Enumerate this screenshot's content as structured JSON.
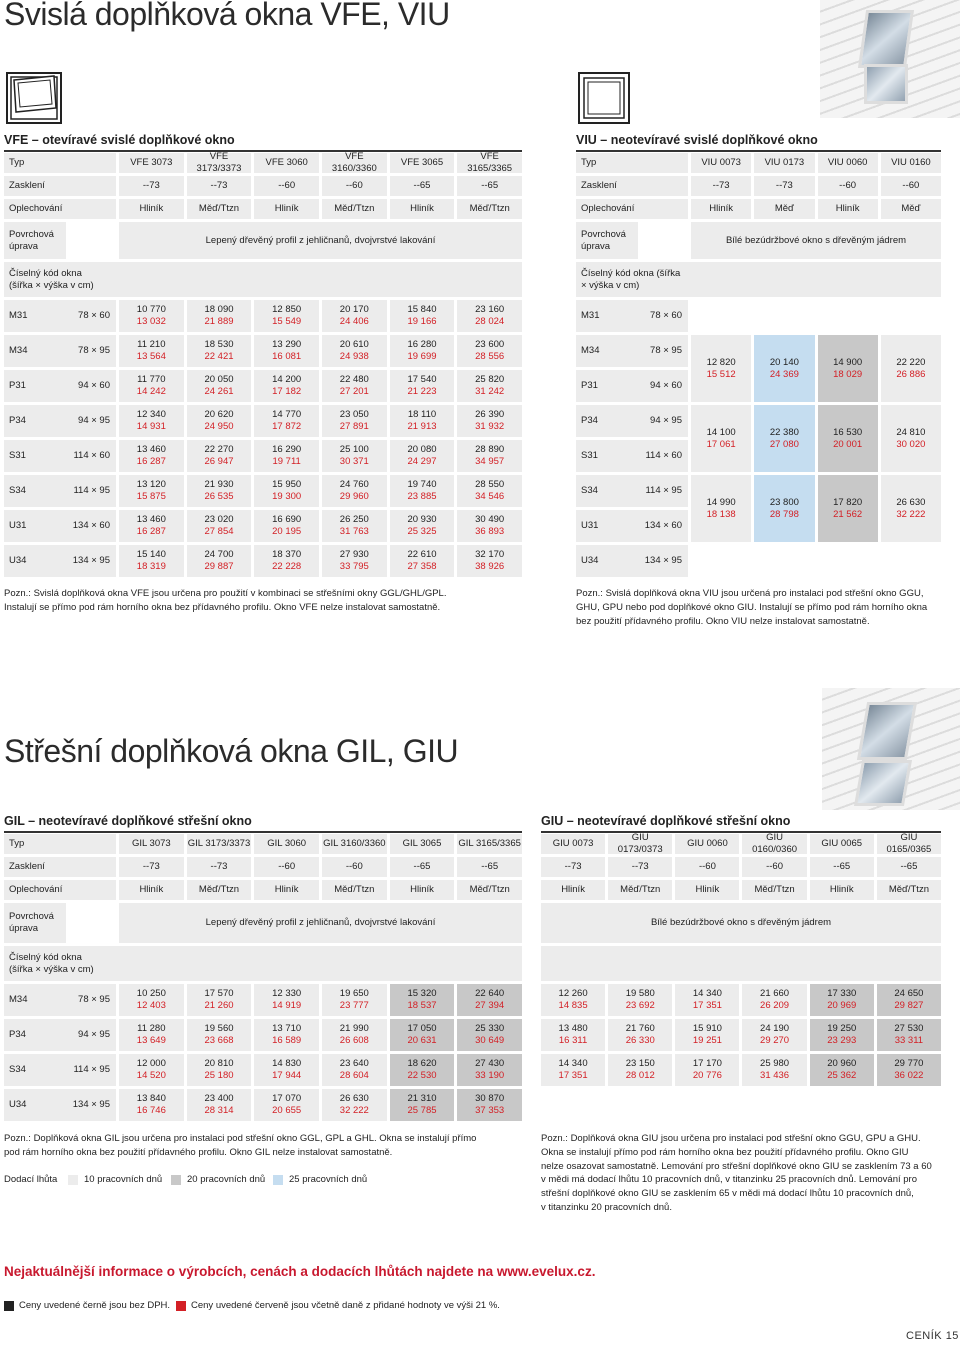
{
  "vfe_viu": {
    "title": "Svislá doplňková okna VFE, VIU",
    "vfe": {
      "heading": "VFE – otevíravé svislé doplňkové okno",
      "typ_label": "Typ",
      "types": [
        "VFE 3073",
        "VFE 3173/3373",
        "VFE 3060",
        "VFE 3160/3360",
        "VFE 3065",
        "VFE 3165/3365"
      ],
      "glazing_label": "Zasklení",
      "glazing": [
        "--73",
        "--73",
        "--60",
        "--60",
        "--65",
        "--65"
      ],
      "flashing_label": "Oplechování",
      "flashing": [
        "Hliník",
        "Měď/Ttzn",
        "Hliník",
        "Měď/Ttzn",
        "Hliník",
        "Měď/Ttzn"
      ],
      "finish_label": "Povrchová úprava",
      "finish": "Lepený dřevěný profil z jehličnanů, dvojvrstvé lakování",
      "code_label": "Číselný kód okna (šířka × výška v cm)",
      "rows": [
        {
          "code": "M31",
          "size": "78 × 60",
          "cells": [
            [
              "10 770",
              "13 032"
            ],
            [
              "18 090",
              "21 889"
            ],
            [
              "12 850",
              "15 549"
            ],
            [
              "20 170",
              "24 406"
            ],
            [
              "15 840",
              "19 166"
            ],
            [
              "23 160",
              "28 024"
            ]
          ]
        },
        {
          "code": "M34",
          "size": "78 × 95",
          "cells": [
            [
              "11 210",
              "13 564"
            ],
            [
              "18 530",
              "22 421"
            ],
            [
              "13 290",
              "16 081"
            ],
            [
              "20 610",
              "24 938"
            ],
            [
              "16 280",
              "19 699"
            ],
            [
              "23 600",
              "28 556"
            ]
          ]
        },
        {
          "code": "P31",
          "size": "94 × 60",
          "cells": [
            [
              "11 770",
              "14 242"
            ],
            [
              "20 050",
              "24 261"
            ],
            [
              "14 200",
              "17 182"
            ],
            [
              "22 480",
              "27 201"
            ],
            [
              "17 540",
              "21 223"
            ],
            [
              "25 820",
              "31 242"
            ]
          ]
        },
        {
          "code": "P34",
          "size": "94 × 95",
          "cells": [
            [
              "12 340",
              "14 931"
            ],
            [
              "20 620",
              "24 950"
            ],
            [
              "14 770",
              "17 872"
            ],
            [
              "23 050",
              "27 891"
            ],
            [
              "18 110",
              "21 913"
            ],
            [
              "26 390",
              "31 932"
            ]
          ]
        },
        {
          "code": "S31",
          "size": "114 × 60",
          "cells": [
            [
              "13 460",
              "16 287"
            ],
            [
              "22 270",
              "26 947"
            ],
            [
              "16 290",
              "19 711"
            ],
            [
              "25 100",
              "30 371"
            ],
            [
              "20 080",
              "24 297"
            ],
            [
              "28 890",
              "34 957"
            ]
          ]
        },
        {
          "code": "S34",
          "size": "114 × 95",
          "cells": [
            [
              "13 120",
              "15 875"
            ],
            [
              "21 930",
              "26 535"
            ],
            [
              "15 950",
              "19 300"
            ],
            [
              "24 760",
              "29 960"
            ],
            [
              "19 740",
              "23 885"
            ],
            [
              "28 550",
              "34 546"
            ]
          ]
        },
        {
          "code": "U31",
          "size": "134 × 60",
          "cells": [
            [
              "13 460",
              "16 287"
            ],
            [
              "23 020",
              "27 854"
            ],
            [
              "16 690",
              "20 195"
            ],
            [
              "26 250",
              "31 763"
            ],
            [
              "20 930",
              "25 325"
            ],
            [
              "30 490",
              "36 893"
            ]
          ]
        },
        {
          "code": "U34",
          "size": "134 × 95",
          "cells": [
            [
              "15 140",
              "18 319"
            ],
            [
              "24 700",
              "29 887"
            ],
            [
              "18 370",
              "22 228"
            ],
            [
              "27 930",
              "33 795"
            ],
            [
              "22 610",
              "27 358"
            ],
            [
              "32 170",
              "38 926"
            ]
          ]
        }
      ],
      "note_1": "Pozn.: Svislá doplňková okna VFE jsou určena pro použití v kombinaci se střešními okny GGL/GHL/GPL.",
      "note_2": "Instalují se přímo pod rám horního okna bez přídavného profilu. Okno VFE nelze instalovat samostatně."
    },
    "viu": {
      "heading": "VIU – neotevíravé svislé doplňkové okno",
      "typ_label": "Typ",
      "types": [
        "VIU 0073",
        "VIU 0173",
        "VIU 0060",
        "VIU 0160"
      ],
      "glazing_label": "Zasklení",
      "glazing": [
        "--73",
        "--73",
        "--60",
        "--60"
      ],
      "flashing_label": "Oplechování",
      "flashing": [
        "Hliník",
        "Měď",
        "Hliník",
        "Měď"
      ],
      "finish_label": "Povrchová úprava",
      "finish": "Bílé bezúdržbové okno s dřevěným jádrem",
      "code_label": "Číselný kód okna (šířka × výška v cm)",
      "rows": [
        {
          "code": "M31",
          "size": "78 × 60"
        },
        {
          "code": "M34",
          "size": "78 × 95"
        },
        {
          "code": "P31",
          "size": "94 × 60"
        },
        {
          "code": "P34",
          "size": "94 × 95"
        },
        {
          "code": "S31",
          "size": "114 × 60"
        },
        {
          "code": "S34",
          "size": "114 × 95"
        },
        {
          "code": "U31",
          "size": "134 × 60"
        },
        {
          "code": "U34",
          "size": "134 × 95"
        }
      ],
      "prices": [
        {
          "cells": [
            [
              "12 820",
              "15 512"
            ],
            [
              "20 140",
              "24 369"
            ],
            [
              "14 900",
              "18 029"
            ],
            [
              "22 220",
              "26 886"
            ]
          ]
        },
        {
          "cells": [
            [
              "14 100",
              "17 061"
            ],
            [
              "22 380",
              "27 080"
            ],
            [
              "16 530",
              "20 001"
            ],
            [
              "24 810",
              "30 020"
            ]
          ]
        },
        {
          "cells": [
            [
              "14 990",
              "18 138"
            ],
            [
              "23 800",
              "28 798"
            ],
            [
              "17 820",
              "21 562"
            ],
            [
              "26 630",
              "32 222"
            ]
          ]
        }
      ],
      "note_1": "Pozn.: Svislá doplňková okna VIU jsou určená pro instalaci pod střešní okno GGU,",
      "note_2": "GHU, GPU nebo pod doplňkové okno GIU. Instalují se přímo pod rám horního okna",
      "note_3": "bez použití přídavného profilu. Okno VIU nelze instalovat samostatně."
    }
  },
  "gil_giu": {
    "title": "Střešní doplňková okna GIL, GIU",
    "gil": {
      "heading": "GIL – neotevíravé doplňkové střešní okno",
      "typ_label": "Typ",
      "types": [
        "GIL 3073",
        "GIL 3173/3373",
        "GIL 3060",
        "GIL 3160/3360",
        "GIL 3065",
        "GIL 3165/3365"
      ],
      "glazing_label": "Zasklení",
      "glazing": [
        "--73",
        "--73",
        "--60",
        "--60",
        "--65",
        "--65"
      ],
      "flashing_label": "Oplechování",
      "flashing": [
        "Hliník",
        "Měď/Ttzn",
        "Hliník",
        "Měď/Ttzn",
        "Hliník",
        "Měď/Ttzn"
      ],
      "finish_label": "Povrchová úprava",
      "finish": "Lepený dřevěný profil z jehličnanů, dvojvrstvé lakování",
      "code_label": "Číselný kód okna (šířka × výška v cm)",
      "rows": [
        {
          "code": "M34",
          "size": "78 × 95",
          "cells": [
            [
              "10 250",
              "12 403"
            ],
            [
              "17 570",
              "21 260"
            ],
            [
              "12 330",
              "14 919"
            ],
            [
              "19 650",
              "23 777"
            ],
            [
              "15 320",
              "18 537"
            ],
            [
              "22 640",
              "27 394"
            ]
          ]
        },
        {
          "code": "P34",
          "size": "94 × 95",
          "cells": [
            [
              "11 280",
              "13 649"
            ],
            [
              "19 560",
              "23 668"
            ],
            [
              "13 710",
              "16 589"
            ],
            [
              "21 990",
              "26 608"
            ],
            [
              "17 050",
              "20 631"
            ],
            [
              "25 330",
              "30 649"
            ]
          ]
        },
        {
          "code": "S34",
          "size": "114 × 95",
          "cells": [
            [
              "12 000",
              "14 520"
            ],
            [
              "20 810",
              "25 180"
            ],
            [
              "14 830",
              "17 944"
            ],
            [
              "23 640",
              "28 604"
            ],
            [
              "18 620",
              "22 530"
            ],
            [
              "27 430",
              "33 190"
            ]
          ]
        },
        {
          "code": "U34",
          "size": "134 × 95",
          "cells": [
            [
              "13 840",
              "16 746"
            ],
            [
              "23 400",
              "28 314"
            ],
            [
              "17 070",
              "20 655"
            ],
            [
              "26 630",
              "32 222"
            ],
            [
              "21 310",
              "25 785"
            ],
            [
              "30 870",
              "37 353"
            ]
          ]
        }
      ],
      "note_1": "Pozn.: Doplňková okna GIL jsou určena pro instalaci pod střešní okno GGL, GPL a GHL. Okna se instalují přímo",
      "note_2": "pod rám horního okna bez použití přídavného profilu. Okno GIL nelze instalovat samostatně.",
      "legend_label": "Dodací lhůta",
      "legend_10": "10 pracovních dnů",
      "legend_20": "20 pracovních dnů",
      "legend_25": "25 pracovních dnů",
      "legend_colors": {
        "d10": "#ececec",
        "d20": "#c8c8c8",
        "d25": "#c5ddf0"
      }
    },
    "giu": {
      "heading": "GIU – neotevíravé doplňkové střešní okno",
      "types": [
        "GIU 0073",
        "GIU 0173/0373",
        "GIU 0060",
        "GIU 0160/0360",
        "GIU 0065",
        "GIU 0165/0365"
      ],
      "glazing": [
        "--73",
        "--73",
        "--60",
        "--60",
        "--65",
        "--65"
      ],
      "flashing": [
        "Hliník",
        "Měď/Ttzn",
        "Hliník",
        "Měď/Ttzn",
        "Hliník",
        "Měď/Ttzn"
      ],
      "finish": "Bílé bezúdržbové okno s dřevěným jádrem",
      "rows": [
        {
          "cells": [
            [
              "12 260",
              "14 835"
            ],
            [
              "19 580",
              "23 692"
            ],
            [
              "14 340",
              "17 351"
            ],
            [
              "21 660",
              "26 209"
            ],
            [
              "17 330",
              "20 969"
            ],
            [
              "24 650",
              "29 827"
            ]
          ]
        },
        {
          "cells": [
            [
              "13 480",
              "16 311"
            ],
            [
              "21 760",
              "26 330"
            ],
            [
              "15 910",
              "19 251"
            ],
            [
              "24 190",
              "29 270"
            ],
            [
              "19 250",
              "23 293"
            ],
            [
              "27 530",
              "33 311"
            ]
          ]
        },
        {
          "cells": [
            [
              "14 340",
              "17 351"
            ],
            [
              "23 150",
              "28 012"
            ],
            [
              "17 170",
              "20 776"
            ],
            [
              "25 980",
              "31 436"
            ],
            [
              "20 960",
              "25 362"
            ],
            [
              "29 770",
              "36 022"
            ]
          ]
        }
      ],
      "note_1": "Pozn.: Doplňková okna GIU jsou určena pro instalaci pod střešní okno GGU, GPU a GHU.",
      "note_2": "Okna se instalují přímo pod rám horního okna bez použití přídavného profilu. Okno GIU",
      "note_3": "nelze osazovat samostatně. Lemování pro střešní doplňkové okno GIU se zasklením 73 a 60",
      "note_4": "v mědi má dodací lhůtu 10 pracovních dnů, v titanzinku 25 pracovních dnů. Lemování pro",
      "note_5": "střešní doplňkové okno GIU se zasklením 65 v mědi má dodací lhůtu 10 pracovních dnů,",
      "note_6": "v titanzinku 20 pracovních dnů."
    }
  },
  "footer": {
    "info": "Nejaktuálnější informace o výrobcích, cenách a dodacích lhůtách najdete na www.evelux.cz.",
    "black_note": "Ceny uvedené černě jsou bez DPH.",
    "red_note": "Ceny uvedené červeně jsou včetně daně z přidané hodnoty ve výši 21 %.",
    "page_label": "CENÍK",
    "page_number": "15",
    "colors": {
      "accent_red": "#d32026",
      "info_red": "#c8182e",
      "dark": "#222222"
    }
  }
}
